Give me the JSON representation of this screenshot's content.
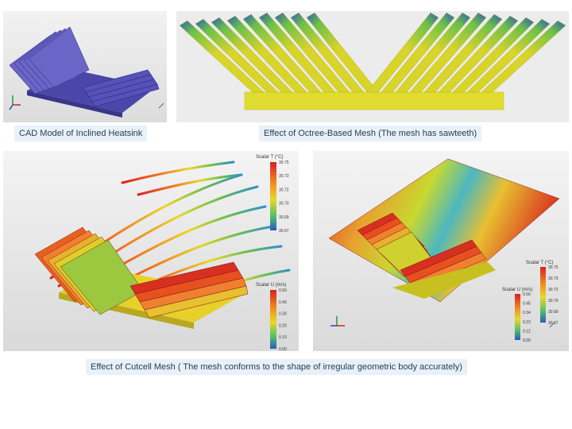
{
  "captions": {
    "cad": "CAD Model of Inclined Heatsink",
    "octree": "Effect of Octree-Based Mesh (The mesh has sawteeth)",
    "cutcell": "Effect of Cutcell Mesh  ( The mesh conforms to the shape of irregular geometric body accurately)"
  },
  "colorbars": {
    "left_temp": {
      "title": "Scalar T (°C)",
      "ticks": [
        "30.75",
        "30.73",
        "30.72",
        "30.70",
        "30.69",
        "30.67"
      ]
    },
    "left_vel": {
      "title": "Scalar U (m/s)",
      "ticks": [
        "0.50",
        "0.40",
        "0.30",
        "0.20",
        "0.10",
        "0.00"
      ]
    },
    "right_temp": {
      "title": "Scalar T (°C)",
      "ticks": [
        "30.75",
        "30.73",
        "30.72",
        "30.70",
        "30.69",
        "30.67"
      ]
    },
    "right_vel": {
      "title": "Scalar U (m/s)",
      "ticks": [
        "0.56",
        "0.45",
        "0.34",
        "0.23",
        "0.12",
        "0.00"
      ]
    }
  },
  "colors": {
    "cad_model": "#6a66c8",
    "mesh_yellow": "#d8d42a",
    "mesh_green": "#6cc04a",
    "mesh_blue": "#2e5fb8",
    "caption_bg": "#e9f1f8",
    "caption_text": "#1f3b57"
  }
}
